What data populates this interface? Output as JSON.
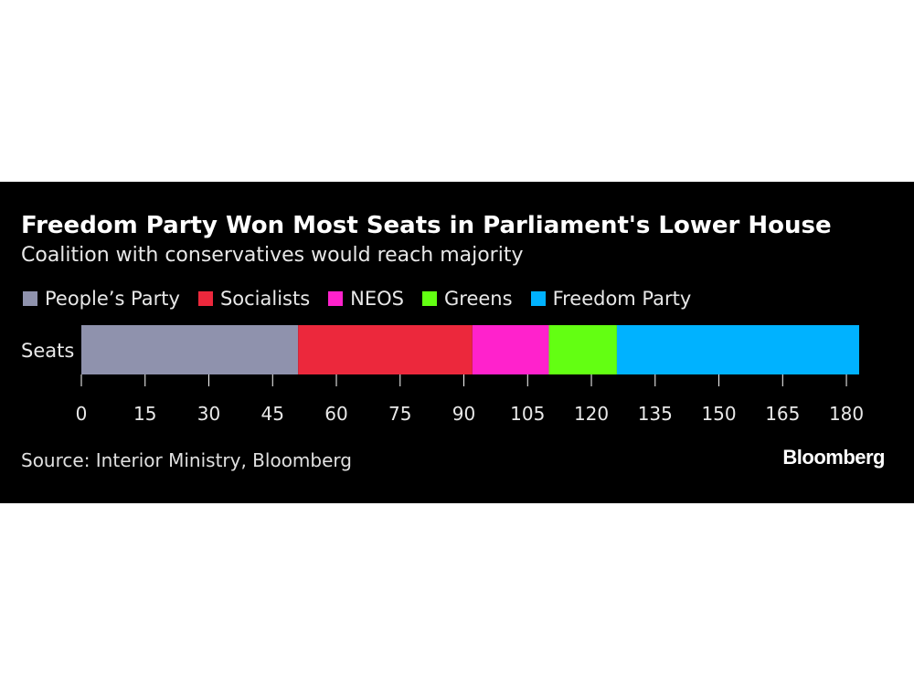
{
  "header": {
    "title": "Freedom Party Won Most Seats in Parliament's Lower House",
    "subtitle": "Coalition with conservatives would reach majority"
  },
  "legend": [
    {
      "label": "People’s Party",
      "color": "#8f92ad"
    },
    {
      "label": "Socialists",
      "color": "#ec283c"
    },
    {
      "label": "NEOS",
      "color": "#ff22cc"
    },
    {
      "label": "Greens",
      "color": "#63ff12"
    },
    {
      "label": "Freedom Party",
      "color": "#00b2ff"
    }
  ],
  "footer": {
    "source": "Source: Interior Ministry, Bloomberg",
    "logo": "Bloomberg"
  },
  "chart_data": {
    "type": "bar",
    "orientation": "horizontal",
    "stacked": true,
    "categories": [
      "Seats"
    ],
    "series": [
      {
        "name": "People’s Party",
        "values": [
          51
        ],
        "color": "#8f92ad"
      },
      {
        "name": "Socialists",
        "values": [
          41
        ],
        "color": "#ec283c"
      },
      {
        "name": "NEOS",
        "values": [
          18
        ],
        "color": "#ff22cc"
      },
      {
        "name": "Greens",
        "values": [
          16
        ],
        "color": "#63ff12"
      },
      {
        "name": "Freedom Party",
        "values": [
          57
        ],
        "color": "#00b2ff"
      }
    ],
    "xticks": [
      0,
      15,
      30,
      45,
      60,
      75,
      90,
      105,
      120,
      135,
      150,
      165,
      180
    ],
    "xlim": [
      0,
      183
    ],
    "title": "Freedom Party Won Most Seats in Parliament's Lower House",
    "subtitle": "Coalition with conservatives would reach majority",
    "xlabel": "",
    "ylabel": "",
    "grid": false,
    "legend_position": "top-left"
  }
}
